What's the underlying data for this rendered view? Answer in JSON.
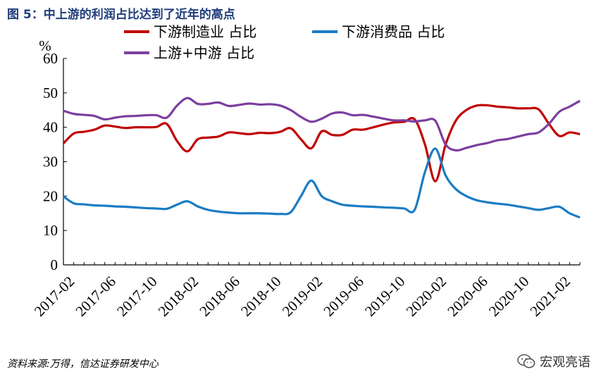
{
  "figure": {
    "title": "图 5：中上游的利润占比达到了近年的高点",
    "source": "资料来源:万得，信达证券研发中心",
    "watermark": "宏观亮语"
  },
  "chart_data": {
    "type": "line",
    "ylabel": "%",
    "ylim": [
      0,
      60
    ],
    "yticks": [
      0,
      10,
      20,
      30,
      40,
      50,
      60
    ],
    "xtick_labels": [
      "2017-02",
      "2017-06",
      "2017-10",
      "2018-02",
      "2018-06",
      "2018-10",
      "2019-02",
      "2019-06",
      "2019-10",
      "2020-02",
      "2020-06",
      "2020-10",
      "2021-02"
    ],
    "x": [
      "2017-02",
      "2017-03",
      "2017-04",
      "2017-05",
      "2017-06",
      "2017-07",
      "2017-08",
      "2017-09",
      "2017-10",
      "2017-11",
      "2017-12",
      "2018-01",
      "2018-02",
      "2018-03",
      "2018-04",
      "2018-05",
      "2018-06",
      "2018-07",
      "2018-08",
      "2018-09",
      "2018-10",
      "2018-11",
      "2018-12",
      "2019-01",
      "2019-02",
      "2019-03",
      "2019-04",
      "2019-05",
      "2019-06",
      "2019-07",
      "2019-08",
      "2019-09",
      "2019-10",
      "2019-11",
      "2019-12",
      "2020-01",
      "2020-02",
      "2020-03",
      "2020-04",
      "2020-05",
      "2020-06",
      "2020-07",
      "2020-08",
      "2020-09",
      "2020-10",
      "2020-11",
      "2020-12",
      "2021-01",
      "2021-02",
      "2021-03",
      "2021-04"
    ],
    "legend_position": "top",
    "grid": false,
    "series": [
      {
        "name": "下游制造业 占比",
        "color": "#c00000",
        "values": [
          35.3,
          38.2,
          38.7,
          39.3,
          40.5,
          40.2,
          39.8,
          40.0,
          40.0,
          40.1,
          41.0,
          36.0,
          33.0,
          36.5,
          37.0,
          37.3,
          38.5,
          38.3,
          38.0,
          38.4,
          38.3,
          38.7,
          39.7,
          36.5,
          33.9,
          38.8,
          37.8,
          37.8,
          39.3,
          39.3,
          40.0,
          40.8,
          41.4,
          41.6,
          42.3,
          35.0,
          24.3,
          35.0,
          42.0,
          45.0,
          46.3,
          46.4,
          46.0,
          45.8,
          45.5,
          45.5,
          45.2,
          41.0,
          37.5,
          38.5,
          38.0
        ]
      },
      {
        "name": "下游消费品 占比",
        "color": "#1a7cc4",
        "values": [
          19.9,
          17.9,
          17.6,
          17.3,
          17.2,
          17.0,
          16.9,
          16.7,
          16.5,
          16.4,
          16.3,
          17.5,
          18.5,
          17.0,
          16.0,
          15.5,
          15.2,
          15.0,
          15.0,
          15.0,
          14.9,
          14.8,
          15.3,
          20.0,
          24.5,
          20.0,
          18.5,
          17.5,
          17.2,
          17.0,
          16.9,
          16.7,
          16.6,
          16.4,
          16.0,
          27.0,
          33.8,
          26.0,
          22.0,
          20.0,
          18.8,
          18.2,
          17.8,
          17.5,
          17.0,
          16.5,
          16.0,
          16.5,
          16.9,
          15.0,
          13.8
        ]
      },
      {
        "name": "上游+中游 占比",
        "color": "#7b3fa0",
        "values": [
          44.8,
          43.9,
          43.6,
          43.3,
          42.3,
          42.8,
          43.2,
          43.3,
          43.5,
          43.5,
          42.8,
          46.3,
          48.5,
          46.8,
          46.8,
          47.2,
          46.2,
          46.5,
          46.9,
          46.6,
          46.7,
          46.3,
          45.0,
          43.0,
          41.6,
          42.5,
          44.0,
          44.3,
          43.5,
          43.6,
          43.1,
          42.5,
          42.0,
          42.0,
          41.7,
          42.0,
          41.9,
          35.0,
          33.3,
          34.0,
          34.8,
          35.4,
          36.2,
          36.6,
          37.3,
          38.0,
          38.5,
          41.0,
          44.5,
          46.0,
          47.7
        ]
      }
    ]
  }
}
